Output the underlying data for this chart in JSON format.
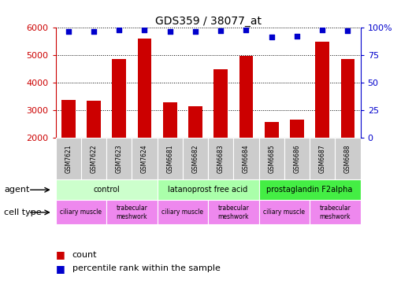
{
  "title": "GDS359 / 38077_at",
  "samples": [
    "GSM7621",
    "GSM7622",
    "GSM7623",
    "GSM7624",
    "GSM6681",
    "GSM6682",
    "GSM6683",
    "GSM6684",
    "GSM6685",
    "GSM6686",
    "GSM6687",
    "GSM6688"
  ],
  "counts": [
    3370,
    3340,
    4850,
    5600,
    3280,
    3160,
    4490,
    4970,
    2570,
    2670,
    5490,
    4860
  ],
  "percentiles": [
    96,
    96,
    98,
    98,
    96,
    96,
    97,
    98,
    91,
    92,
    98,
    97
  ],
  "bar_color": "#cc0000",
  "dot_color": "#0000cc",
  "ylim_left": [
    2000,
    6000
  ],
  "ylim_right": [
    0,
    100
  ],
  "yticks_left": [
    2000,
    3000,
    4000,
    5000,
    6000
  ],
  "yticks_right": [
    0,
    25,
    50,
    75,
    100
  ],
  "ytick_labels_right": [
    "0",
    "25",
    "50",
    "75",
    "100%"
  ],
  "agents": [
    {
      "label": "control",
      "start": 0,
      "end": 4,
      "color": "#ccffcc"
    },
    {
      "label": "latanoprost free acid",
      "start": 4,
      "end": 8,
      "color": "#aaffaa"
    },
    {
      "label": "prostaglandin F2alpha",
      "start": 8,
      "end": 12,
      "color": "#44ee44"
    }
  ],
  "cell_types": [
    {
      "label": "ciliary muscle",
      "start": 0,
      "end": 2,
      "color": "#ee88ee"
    },
    {
      "label": "trabecular\nmeshwork",
      "start": 2,
      "end": 4,
      "color": "#ee88ee"
    },
    {
      "label": "ciliary muscle",
      "start": 4,
      "end": 6,
      "color": "#ee88ee"
    },
    {
      "label": "trabecular\nmeshwork",
      "start": 6,
      "end": 8,
      "color": "#ee88ee"
    },
    {
      "label": "ciliary muscle",
      "start": 8,
      "end": 10,
      "color": "#ee88ee"
    },
    {
      "label": "trabecular\nmeshwork",
      "start": 10,
      "end": 12,
      "color": "#ee88ee"
    }
  ],
  "agent_row_label": "agent",
  "cell_type_row_label": "cell type",
  "legend_count_label": "count",
  "legend_percentile_label": "percentile rank within the sample",
  "sample_box_color": "#cccccc",
  "left_axis_color": "#cc0000",
  "right_axis_color": "#0000cc"
}
